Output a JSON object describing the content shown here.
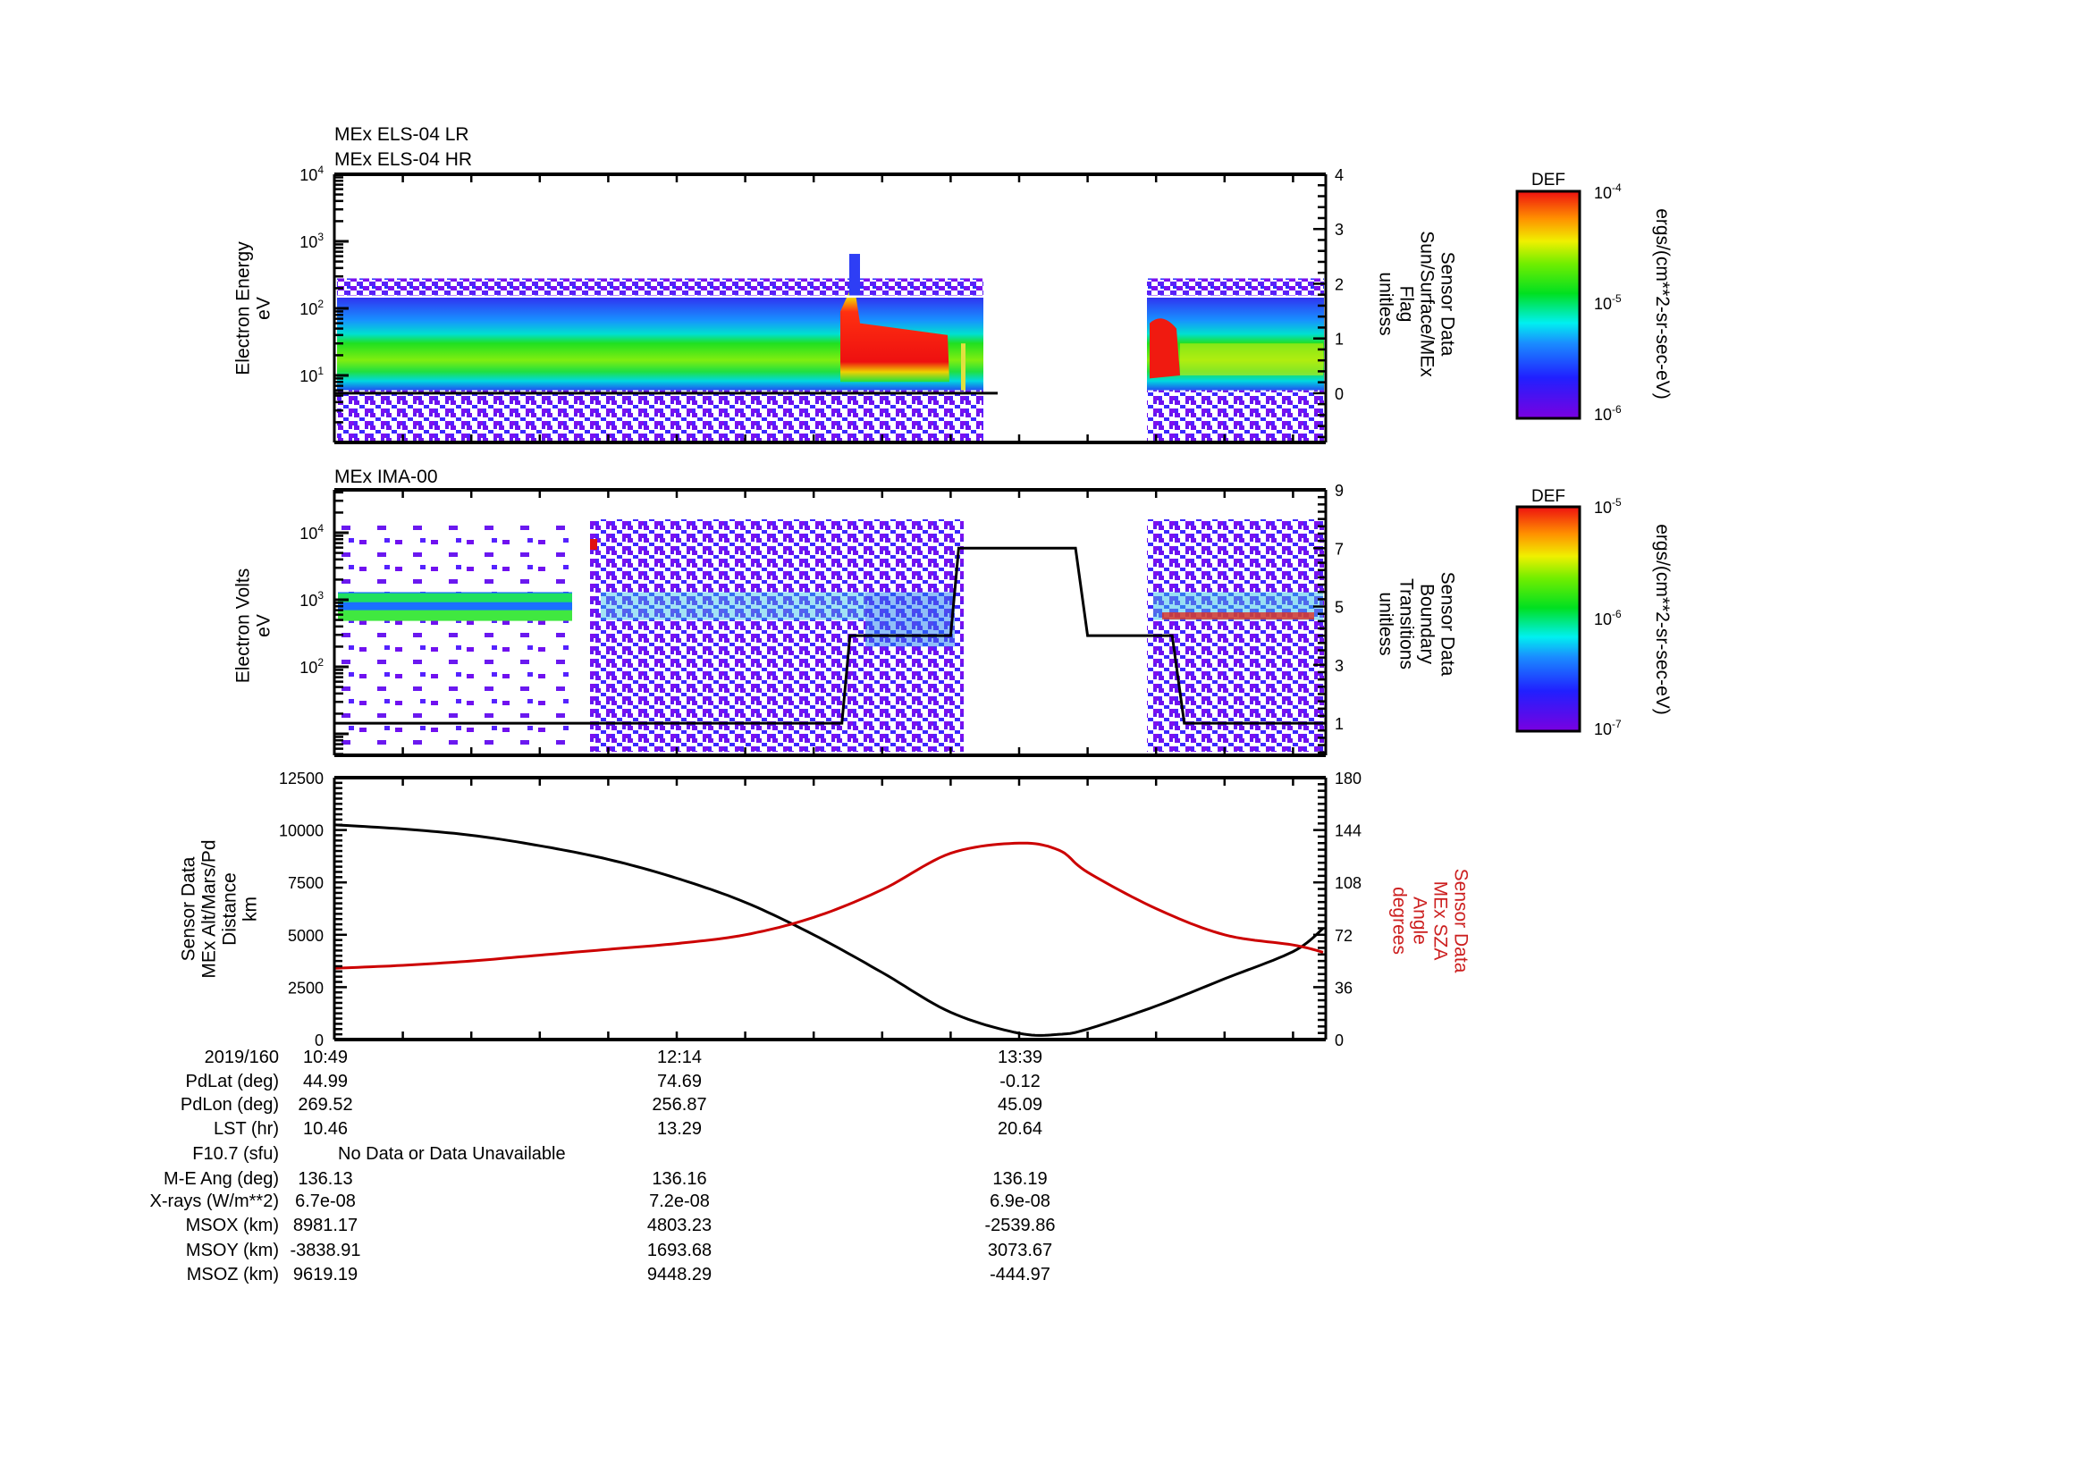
{
  "figure": {
    "panel1": {
      "titles": [
        "MEx ELS-04 LR",
        "MEx ELS-04 HR"
      ],
      "ylabel_left": [
        "Electron Energy",
        "eV"
      ],
      "ylabel_right": [
        "Sensor Data",
        "Sun/Surface/MEx",
        "Flag",
        "unitless"
      ],
      "left_ticks": [
        "10^1",
        "10^2",
        "10^3",
        "10^4"
      ],
      "right_ticks": [
        "0",
        "1",
        "2",
        "3",
        "4"
      ],
      "colorbar": {
        "title": "DEF",
        "top": "10^-4",
        "mid": "10^-5",
        "bottom": "10^-6",
        "unit": "ergs/(cm**2-sr-sec-eV)"
      }
    },
    "panel2": {
      "title": "MEx IMA-00",
      "ylabel_left": [
        "Electron Volts",
        "eV"
      ],
      "ylabel_right": [
        "Sensor Data",
        "Boundary",
        "Transitions",
        "unitless"
      ],
      "left_ticks": [
        "10^2",
        "10^3",
        "10^4"
      ],
      "right_ticks": [
        "1",
        "3",
        "5",
        "7",
        "9"
      ],
      "colorbar": {
        "title": "DEF",
        "top": "10^-5",
        "mid": "10^-6",
        "bottom": "10^-7",
        "unit": "ergs/(cm**2-sr-sec-eV)"
      }
    },
    "panel3": {
      "ylabel_left": [
        "Sensor Data",
        "MEx Alt/Mars/Pd",
        "Distance",
        "km"
      ],
      "ylabel_right": [
        "Sensor Data",
        "MEx SZA",
        "Angle",
        "degrees"
      ],
      "left_ticks": [
        "0",
        "2500",
        "5000",
        "7500",
        "10000",
        "12500"
      ],
      "right_ticks": [
        "0",
        "36",
        "72",
        "108",
        "144",
        "180"
      ]
    }
  },
  "ephemeris": {
    "labels": [
      "2019/160",
      "PdLat (deg)",
      "PdLon (deg)",
      "LST (hr)",
      "F10.7 (sfu)",
      "M-E Ang (deg)",
      "X-rays (W/m**2)",
      "MSOX (km)",
      "MSOY (km)",
      "MSOZ (km)"
    ],
    "columns": [
      {
        "time": "10:49",
        "PdLat": "44.99",
        "PdLon": "269.52",
        "LST": "10.46",
        "MEAng": "136.13",
        "Xrays": "6.7e-08",
        "MSOX": "8981.17",
        "MSOY": "-3838.91",
        "MSOZ": "9619.19"
      },
      {
        "time": "12:14",
        "PdLat": "74.69",
        "PdLon": "256.87",
        "LST": "13.29",
        "MEAng": "136.16",
        "Xrays": "7.2e-08",
        "MSOX": "4803.23",
        "MSOY": "1693.68",
        "MSOZ": "9448.29"
      },
      {
        "time": "13:39",
        "PdLat": "-0.12",
        "PdLon": "45.09",
        "LST": "20.64",
        "MEAng": "136.19",
        "Xrays": "6.9e-08",
        "MSOX": "-2539.86",
        "MSOY": "3073.67",
        "MSOZ": "-444.97"
      }
    ],
    "f107_note": "No Data or Data Unavailable"
  },
  "chart_data": [
    {
      "type": "heatmap",
      "title": "MEx ELS-04 LR / MEx ELS-04 HR",
      "xlabel": "Time (2019/160)",
      "ylabel": "Electron Energy (eV)",
      "yscale": "log",
      "ylim": [
        1,
        10000
      ],
      "x_tick_labels": [
        "10:49",
        "12:14",
        "13:39"
      ],
      "colorbar": {
        "label": "DEF ergs/(cm**2-sr-sec-eV)",
        "range": [
          1e-06,
          0.0001
        ],
        "scale": "log"
      },
      "features": [
        {
          "time_range": [
            "10:49",
            "12:50"
          ],
          "energy_eV": [
            5,
            150
          ],
          "peak_energy_eV": 20,
          "level": "green (~1e-5)"
        },
        {
          "time_range": [
            "12:50",
            "13:23"
          ],
          "energy_eV": [
            8,
            60
          ],
          "level": "red (~1e-4)",
          "note": "enhanced flux, spike to ~500 eV at ~12:54"
        },
        {
          "time_range": [
            "13:23",
            "13:28"
          ],
          "level": "no data (gap)"
        },
        {
          "time_range": [
            "13:56",
            "15:00"
          ],
          "energy_eV": [
            5,
            150
          ],
          "level": "red near 13:58, then yellow/green"
        }
      ],
      "secondary": {
        "name": "Sun/Surface/MEx Flag",
        "ylim": [
          -0.9,
          4
        ],
        "values": [
          {
            "time": "10:49",
            "y": 0
          },
          {
            "time": "13:32",
            "y": 0
          }
        ]
      }
    },
    {
      "type": "heatmap",
      "title": "MEx IMA-00",
      "xlabel": "Time (2019/160)",
      "ylabel": "Electron Volts (eV)",
      "yscale": "log",
      "ylim": [
        10,
        40000
      ],
      "x_tick_labels": [
        "10:49",
        "12:14",
        "13:39"
      ],
      "colorbar": {
        "label": "DEF ergs/(cm**2-sr-sec-eV)",
        "range": [
          1e-07,
          1e-05
        ],
        "scale": "log"
      },
      "features": [
        {
          "time_range": [
            "10:49",
            "11:35"
          ],
          "energy_eV": [
            500,
            1300
          ],
          "level": "green/cyan bands"
        },
        {
          "time_range": [
            "11:40",
            "13:22"
          ],
          "energy_eV": [
            10,
            20000
          ],
          "level": "broadband purple background, bands at ~600 and ~1200 eV"
        },
        {
          "time_range": [
            "13:56",
            "15:00"
          ],
          "energy_eV": [
            10,
            20000
          ],
          "level": "broadband with red at ~600 eV"
        }
      ],
      "secondary": {
        "name": "Boundary Transitions",
        "ylim": [
          -0.1,
          9
        ],
        "values": [
          {
            "time": "10:49",
            "y": 1
          },
          {
            "time": "12:55",
            "y": 1
          },
          {
            "time": "12:57",
            "y": 4
          },
          {
            "time": "13:22",
            "y": 4
          },
          {
            "time": "13:24",
            "y": 7
          },
          {
            "time": "13:53",
            "y": 7
          },
          {
            "time": "13:56",
            "y": 4
          },
          {
            "time": "14:17",
            "y": 4
          },
          {
            "time": "14:20",
            "y": 1
          },
          {
            "time": "15:00",
            "y": 1
          }
        ]
      }
    },
    {
      "type": "line",
      "title": "",
      "xlabel": "Time (2019/160)",
      "x_tick_labels": [
        "10:49",
        "12:14",
        "13:39"
      ],
      "ylabel_left": "MEx Alt/Mars/Pd Distance (km)",
      "ylim_left": [
        0,
        12500
      ],
      "ylabel_right": "MEx SZA Angle (degrees)",
      "ylim_right": [
        0,
        180
      ],
      "x_minutes": [
        0,
        17,
        34,
        51,
        68,
        85,
        102,
        119,
        136,
        153,
        170,
        180,
        187,
        204,
        221,
        238,
        250
      ],
      "series": [
        {
          "name": "MEx Alt/Mars/Pd Distance",
          "axis": "left",
          "color": "#000000",
          "values": [
            10250,
            10050,
            9750,
            9250,
            8600,
            7700,
            6550,
            5000,
            3200,
            1300,
            300,
            250,
            500,
            1600,
            2900,
            4200,
            5300
          ]
        },
        {
          "name": "MEx SZA Angle",
          "axis": "right",
          "color": "#cc0000",
          "values": [
            49,
            51,
            54,
            58,
            62,
            66,
            72,
            84,
            103,
            128,
            135,
            130,
            115,
            90,
            72,
            65,
            60
          ]
        }
      ]
    }
  ]
}
